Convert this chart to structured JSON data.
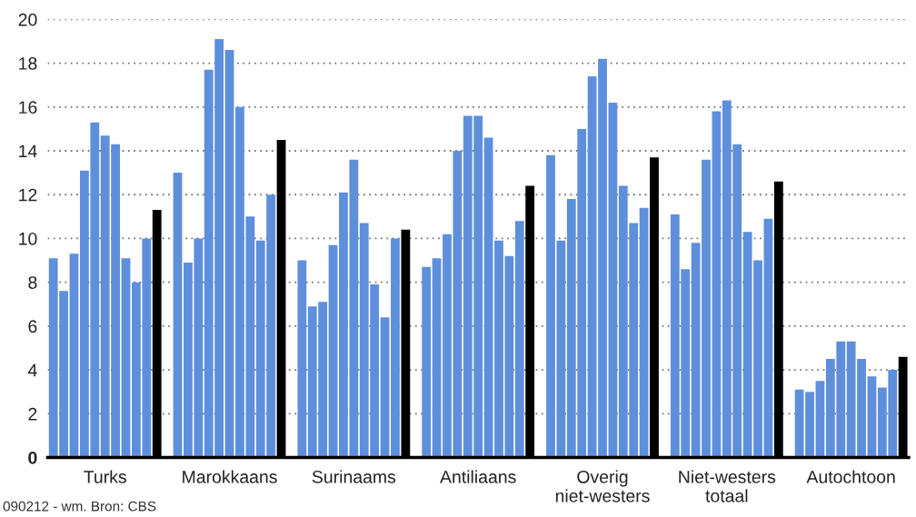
{
  "chart_data": {
    "type": "bar",
    "categories": [
      "Turks",
      "Marokkaans",
      "Surinaams",
      "Antiliaans",
      "Overig\nniet-westers",
      "Niet-westers\ntotaal",
      "Autochtoon"
    ],
    "series": [
      {
        "color": "#5e8fdc",
        "values": [
          9.1,
          13.0,
          9.0,
          8.7,
          13.8,
          11.1,
          3.1
        ]
      },
      {
        "color": "#5e8fdc",
        "values": [
          7.6,
          8.9,
          6.9,
          9.1,
          9.9,
          8.6,
          3.0
        ]
      },
      {
        "color": "#5e8fdc",
        "values": [
          9.3,
          10.0,
          7.1,
          10.2,
          11.8,
          9.8,
          3.5
        ]
      },
      {
        "color": "#5e8fdc",
        "values": [
          13.1,
          17.7,
          9.7,
          14.0,
          15.0,
          13.6,
          4.5
        ]
      },
      {
        "color": "#5e8fdc",
        "values": [
          15.3,
          19.1,
          12.1,
          15.6,
          17.4,
          15.8,
          5.3
        ]
      },
      {
        "color": "#5e8fdc",
        "values": [
          14.7,
          18.6,
          13.6,
          15.6,
          18.2,
          16.3,
          5.3
        ]
      },
      {
        "color": "#5e8fdc",
        "values": [
          14.3,
          16.0,
          10.7,
          14.6,
          16.2,
          14.3,
          4.5
        ]
      },
      {
        "color": "#5e8fdc",
        "values": [
          9.1,
          11.0,
          7.9,
          9.9,
          12.4,
          10.3,
          3.7
        ]
      },
      {
        "color": "#5e8fdc",
        "values": [
          8.0,
          9.9,
          6.4,
          9.2,
          10.7,
          9.0,
          3.2
        ]
      },
      {
        "color": "#5e8fdc",
        "values": [
          10.0,
          12.0,
          10.0,
          10.8,
          11.4,
          10.9,
          4.0
        ]
      },
      {
        "color": "#000000",
        "values": [
          11.3,
          14.5,
          10.4,
          12.4,
          13.7,
          12.6,
          4.6
        ]
      }
    ],
    "ylim": [
      0,
      20
    ],
    "yticks": [
      0,
      2,
      4,
      6,
      8,
      10,
      12,
      14,
      16,
      18,
      20
    ],
    "grid": "y",
    "annotations": [
      "090212 - wm. Bron: CBS"
    ]
  }
}
